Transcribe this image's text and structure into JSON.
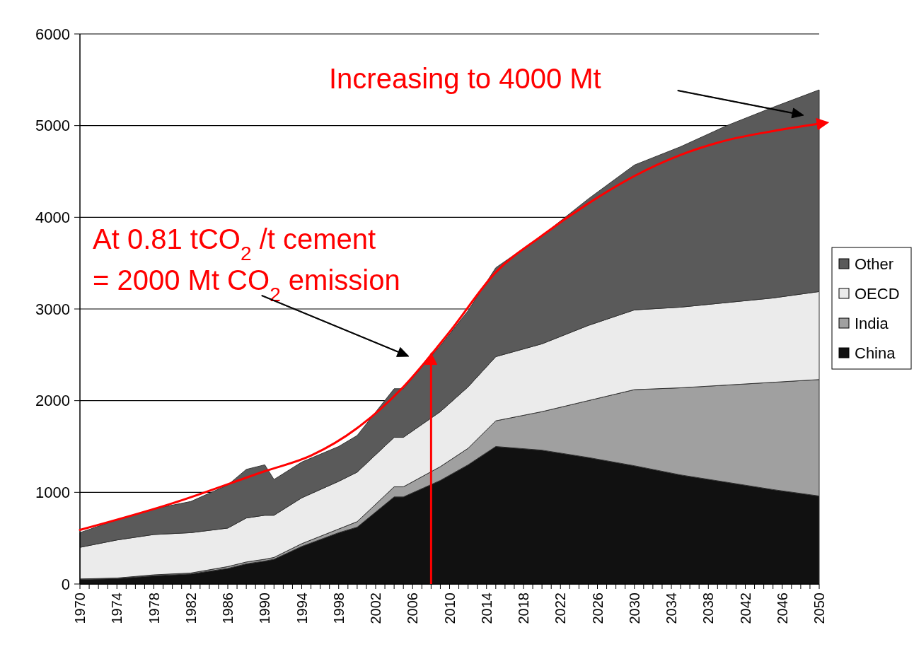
{
  "chart_data": {
    "type": "area",
    "stacked": true,
    "grid": "y",
    "legend": "right",
    "x": [
      1970,
      1974,
      1978,
      1982,
      1986,
      1988,
      1990,
      1991,
      1994,
      1998,
      2000,
      2004,
      2005,
      2009,
      2012,
      2015,
      2020,
      2025,
      2030,
      2035,
      2040,
      2045,
      2050
    ],
    "xlim": [
      1970,
      2050
    ],
    "ylim": [
      0,
      6000
    ],
    "yticks": [
      0,
      1000,
      2000,
      3000,
      4000,
      5000,
      6000
    ],
    "xticks": [
      1970,
      {
        "value": 1971,
        "label": null
      },
      {
        "value": 1972,
        "label": null
      },
      {
        "value": 1973,
        "label": null
      },
      1974,
      {
        "value": 1975,
        "label": null
      },
      {
        "value": 1976,
        "label": null
      },
      {
        "value": 1977,
        "label": null
      },
      1978,
      {
        "value": 1979,
        "label": null
      },
      {
        "value": 1980,
        "label": null
      },
      {
        "value": 1981,
        "label": null
      },
      1982,
      {
        "value": 1983,
        "label": null
      },
      {
        "value": 1984,
        "label": null
      },
      {
        "value": 1985,
        "label": null
      },
      1986,
      {
        "value": 1987,
        "label": null
      },
      {
        "value": 1988,
        "label": null
      },
      {
        "value": 1989,
        "label": null
      },
      1990,
      {
        "value": 1991,
        "label": null
      },
      {
        "value": 1992,
        "label": null
      },
      {
        "value": 1993,
        "label": null
      },
      1994,
      {
        "value": 1995,
        "label": null
      },
      {
        "value": 1996,
        "label": null
      },
      {
        "value": 1997,
        "label": null
      },
      1998,
      {
        "value": 1999,
        "label": null
      },
      {
        "value": 2000,
        "label": null
      },
      {
        "value": 2001,
        "label": null
      },
      2002,
      {
        "value": 2003,
        "label": null
      },
      {
        "value": 2004,
        "label": null
      },
      {
        "value": 2005,
        "label": null
      },
      2006,
      {
        "value": 2007,
        "label": null
      },
      {
        "value": 2008,
        "label": null
      },
      {
        "value": 2009,
        "label": null
      },
      2010,
      {
        "value": 2011,
        "label": null
      },
      {
        "value": 2012,
        "label": null
      },
      {
        "value": 2013,
        "label": null
      },
      2014,
      {
        "value": 2015,
        "label": null
      },
      {
        "value": 2016,
        "label": null
      },
      {
        "value": 2017,
        "label": null
      },
      2018,
      {
        "value": 2019,
        "label": null
      },
      {
        "value": 2020,
        "label": null
      },
      {
        "value": 2021,
        "label": null
      },
      2022,
      {
        "value": 2023,
        "label": null
      },
      {
        "value": 2024,
        "label": null
      },
      {
        "value": 2025,
        "label": null
      },
      2026,
      {
        "value": 2027,
        "label": null
      },
      {
        "value": 2028,
        "label": null
      },
      {
        "value": 2029,
        "label": null
      },
      2030,
      {
        "value": 2031,
        "label": null
      },
      {
        "value": 2032,
        "label": null
      },
      {
        "value": 2033,
        "label": null
      },
      2034,
      {
        "value": 2035,
        "label": null
      },
      {
        "value": 2036,
        "label": null
      },
      {
        "value": 2037,
        "label": null
      },
      2038,
      {
        "value": 2039,
        "label": null
      },
      {
        "value": 2040,
        "label": null
      },
      {
        "value": 2041,
        "label": null
      },
      2042,
      {
        "value": 2043,
        "label": null
      },
      {
        "value": 2044,
        "label": null
      },
      {
        "value": 2045,
        "label": null
      },
      2046,
      {
        "value": 2047,
        "label": null
      },
      {
        "value": 2048,
        "label": null
      },
      {
        "value": 2049,
        "label": null
      },
      2050
    ],
    "series": [
      {
        "name": "China",
        "color": "#111111",
        "values": [
          50,
          60,
          90,
          110,
          170,
          220,
          250,
          270,
          410,
          560,
          620,
          950,
          950,
          1130,
          1300,
          1500,
          1460,
          1380,
          1290,
          1190,
          1110,
          1030,
          960
        ]
      },
      {
        "name": "India",
        "color": "#a0a0a0",
        "values": [
          5,
          5,
          10,
          10,
          20,
          20,
          20,
          20,
          30,
          40,
          60,
          110,
          110,
          150,
          180,
          280,
          420,
          620,
          830,
          950,
          1060,
          1170,
          1270
        ]
      },
      {
        "name": "OECD",
        "color": "#ebebeb",
        "values": [
          345,
          415,
          440,
          440,
          420,
          480,
          480,
          460,
          500,
          520,
          540,
          540,
          540,
          600,
          670,
          700,
          740,
          820,
          870,
          880,
          900,
          920,
          960
        ]
      },
      {
        "name": "Other",
        "color": "#5a5a5a",
        "values": [
          160,
          220,
          280,
          340,
          470,
          530,
          550,
          390,
          390,
          380,
          400,
          530,
          530,
          720,
          830,
          970,
          1180,
          1380,
          1580,
          1750,
          1930,
          2080,
          2200
        ]
      },
      {
        "type": "line",
        "color": "#ff0000",
        "x": [
          1970,
          1980,
          1990,
          1995,
          2000,
          2005,
          2010,
          2015,
          2020,
          2025,
          2030,
          2035,
          2040,
          2045,
          2050
        ],
        "values": [
          590,
          880,
          1230,
          1400,
          1700,
          2150,
          2750,
          3400,
          3800,
          4150,
          4450,
          4680,
          4840,
          4940,
          5020
        ]
      }
    ],
    "ref_lines": [
      {
        "axis": "x",
        "value": 2008,
        "color": "#ff0000"
      }
    ],
    "annotations": [
      "Increasing to 4000 Mt",
      "At 0.81 tCO$_{2}$ /t cement\n= 2000 Mt CO$_{2}$ emission"
    ]
  }
}
